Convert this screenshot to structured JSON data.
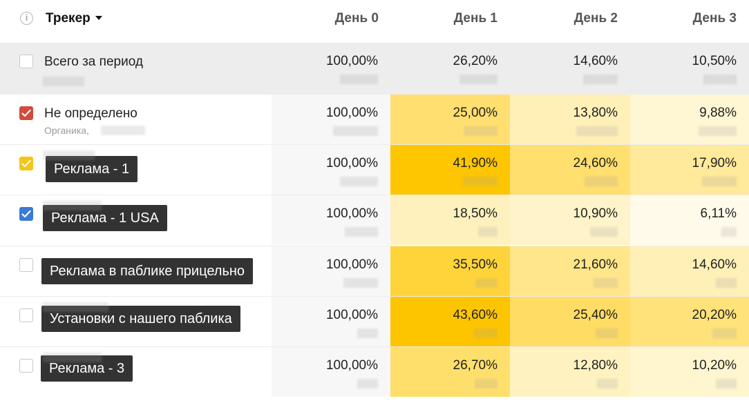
{
  "header": {
    "info_icon": "info-icon",
    "tracker_label": "Трекер",
    "days": [
      "День 0",
      "День 1",
      "День 2",
      "День 3"
    ]
  },
  "rows": [
    {
      "name": "Всего за период",
      "subname": "",
      "checked": false,
      "checkbox_color": "",
      "values": [
        "100,00%",
        "26,20%",
        "14,60%",
        "10,50%"
      ]
    },
    {
      "name": "Не определено",
      "subname": "Органика,",
      "checked": true,
      "checkbox_color": "#d24b3c",
      "values": [
        "100,00%",
        "25,00%",
        "13,80%",
        "9,88%"
      ]
    },
    {
      "name": "Реклама - 1",
      "subname": "",
      "checked": true,
      "checkbox_color": "#f5c518",
      "values": [
        "100,00%",
        "41,90%",
        "24,60%",
        "17,90%"
      ]
    },
    {
      "name": "Реклама - 1 USA",
      "subname": "",
      "checked": true,
      "checkbox_color": "#3a7bd5",
      "values": [
        "100,00%",
        "18,50%",
        "10,90%",
        "6,11%"
      ]
    },
    {
      "name": "Реклама в паблике прицельно",
      "subname": "",
      "checked": false,
      "checkbox_color": "",
      "values": [
        "100,00%",
        "35,50%",
        "21,60%",
        "14,60%"
      ]
    },
    {
      "name": "Установки с нашего паблика",
      "subname": "",
      "checked": false,
      "checkbox_color": "",
      "values": [
        "100,00%",
        "43,60%",
        "25,40%",
        "20,20%"
      ]
    },
    {
      "name": "Реклама - 3",
      "subname": "",
      "checked": false,
      "checkbox_color": "",
      "values": [
        "100,00%",
        "26,70%",
        "12,80%",
        "10,20%"
      ]
    }
  ],
  "heat": [
    [
      null,
      null,
      null,
      null
    ],
    [
      null,
      "#ffdf70",
      "#fff0b8",
      "#fff6d3"
    ],
    [
      null,
      "#fdc600",
      "#ffdf6e",
      "#ffe99a"
    ],
    [
      null,
      "#fff1bd",
      "#fff4c9",
      "#fffaea"
    ],
    [
      null,
      "#ffd43a",
      "#ffe68a",
      "#fff0b8"
    ],
    [
      null,
      "#fdc500",
      "#ffdc63",
      "#ffe27a"
    ],
    [
      null,
      "#ffdf6c",
      "#fff2c1",
      "#fff5cf"
    ]
  ]
}
